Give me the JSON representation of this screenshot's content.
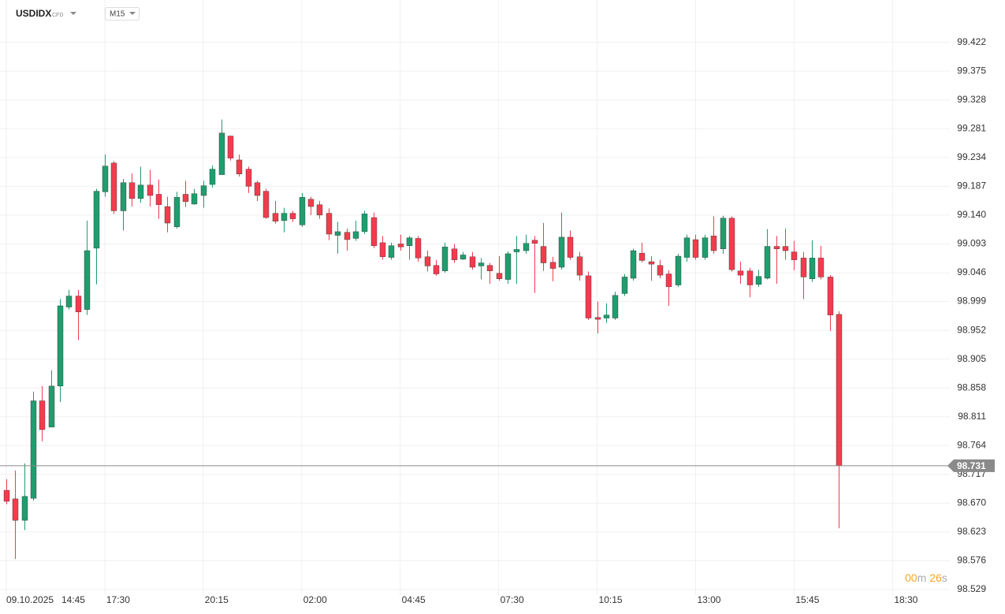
{
  "header": {
    "symbol": "USDIDX",
    "instrument_type": "CFD",
    "timeframe": "M15"
  },
  "timer": {
    "minutes": "00",
    "minutes_unit": "m",
    "seconds": "26",
    "seconds_unit": "s"
  },
  "chart_data": {
    "type": "candlestick",
    "start_date": "09.10.2025",
    "up_color": "#1f9d6e",
    "down_color": "#f23c4e",
    "grid": true,
    "current_price": 98.731,
    "current_price_color": "#8a8a8a",
    "xlim": [
      -0.7,
      105.4
    ],
    "xticks": [
      {
        "value": 0,
        "label": "14:45"
      },
      {
        "value": 11,
        "label": "17:30"
      },
      {
        "value": 22,
        "label": "20:15"
      },
      {
        "value": 33,
        "label": "02:00"
      },
      {
        "value": 44,
        "label": "04:45"
      },
      {
        "value": 55,
        "label": "07:30"
      },
      {
        "value": 66,
        "label": "10:15"
      },
      {
        "value": 77,
        "label": "13:00"
      },
      {
        "value": 88,
        "label": "15:45"
      },
      {
        "value": 99,
        "label": "18:30"
      }
    ],
    "ylim": [
      98.52,
      99.491
    ],
    "yticks": [
      99.422,
      99.375,
      99.328,
      99.281,
      99.234,
      99.187,
      {
        "value": 99.14,
        "label": "99.140"
      },
      99.093,
      99.046,
      98.999,
      98.952,
      98.905,
      98.858,
      98.811,
      98.764,
      98.717,
      {
        "value": 98.67,
        "label": "98.670"
      },
      98.623,
      98.576,
      98.529
    ],
    "open": [
      98.691,
      98.677,
      98.642,
      98.678,
      98.837,
      98.794,
      98.861,
      98.99,
      99.008,
      98.986,
      99.086,
      99.178,
      99.225,
      99.147,
      99.193,
      99.167,
      99.189,
      99.174,
      99.154,
      99.121,
      99.174,
      99.158,
      99.172,
      99.19,
      99.206,
      99.269,
      99.23,
      99.215,
      99.193,
      99.179,
      99.143,
      99.131,
      99.143,
      99.124,
      99.166,
      99.157,
      99.143,
      99.107,
      99.112,
      99.102,
      99.113,
      99.136,
      99.095,
      99.071,
      99.093,
      99.09,
      99.102,
      99.072,
      99.058,
      99.049,
      99.085,
      99.068,
      99.072,
      99.057,
      99.058,
      99.045,
      99.035,
      99.08,
      99.082,
      99.099,
      99.089,
      99.063,
      99.055,
      99.104,
      99.072,
      99.041,
      98.973,
      98.972,
      98.972,
      99.012,
      99.037,
      99.078,
      99.064,
      99.058,
      99.044,
      99.026,
      99.071,
      99.1,
      99.071,
      99.106,
      99.085,
      99.135,
      99.049,
      99.049,
      99.027,
      99.037,
      99.089,
      99.089,
      99.08,
      99.07,
      99.036,
      99.07,
      99.039,
      98.978
    ],
    "high": [
      98.709,
      98.723,
      98.735,
      98.852,
      98.861,
      98.887,
      99.003,
      99.018,
      99.018,
      99.131,
      99.183,
      99.239,
      99.228,
      99.199,
      99.208,
      99.219,
      99.214,
      99.198,
      99.17,
      99.178,
      99.196,
      99.183,
      99.196,
      99.221,
      99.296,
      99.27,
      99.239,
      99.219,
      99.196,
      99.183,
      99.163,
      99.152,
      99.147,
      99.176,
      99.17,
      99.163,
      99.151,
      99.129,
      99.118,
      99.131,
      99.147,
      99.144,
      99.106,
      99.095,
      99.108,
      99.106,
      99.106,
      99.082,
      99.067,
      99.095,
      99.093,
      99.08,
      99.08,
      99.07,
      99.062,
      99.073,
      99.081,
      99.106,
      99.108,
      99.106,
      99.127,
      99.072,
      99.144,
      99.115,
      99.08,
      99.048,
      98.999,
      98.996,
      99.015,
      99.044,
      99.085,
      99.095,
      99.073,
      99.067,
      99.05,
      99.077,
      99.108,
      99.108,
      99.108,
      99.138,
      99.139,
      99.138,
      99.064,
      99.054,
      99.051,
      99.117,
      99.106,
      99.118,
      99.098,
      99.08,
      99.099,
      99.09,
      99.042,
      98.983
    ],
    "low": [
      98.668,
      98.579,
      98.626,
      98.674,
      98.771,
      98.794,
      98.835,
      98.986,
      98.936,
      98.977,
      99.027,
      99.17,
      99.142,
      99.115,
      99.154,
      99.16,
      99.154,
      99.134,
      99.112,
      99.118,
      99.153,
      99.157,
      99.152,
      99.185,
      99.206,
      99.229,
      99.203,
      99.176,
      99.163,
      99.134,
      99.126,
      99.112,
      99.129,
      99.121,
      99.14,
      99.134,
      99.099,
      99.077,
      99.082,
      99.098,
      99.109,
      99.086,
      99.067,
      99.067,
      99.082,
      99.067,
      99.064,
      99.048,
      99.041,
      99.046,
      99.062,
      99.067,
      99.051,
      99.035,
      99.028,
      99.033,
      99.028,
      99.028,
      99.077,
      99.013,
      99.049,
      99.032,
      99.051,
      99.067,
      99.033,
      98.969,
      98.947,
      98.964,
      98.969,
      99.008,
      99.033,
      99.063,
      99.033,
      99.037,
      98.992,
      99.023,
      99.064,
      99.067,
      99.067,
      99.077,
      99.077,
      99.048,
      99.028,
      99.006,
      99.023,
      99.035,
      99.028,
      99.067,
      99.05,
      99.003,
      99.031,
      99.035,
      98.951,
      98.629
    ],
    "close": [
      98.673,
      98.642,
      98.681,
      98.837,
      98.79,
      98.861,
      98.992,
      99.008,
      98.982,
      99.082,
      99.179,
      99.22,
      99.147,
      99.193,
      99.167,
      99.189,
      99.172,
      99.157,
      99.127,
      99.169,
      99.162,
      99.175,
      99.188,
      99.215,
      99.274,
      99.233,
      99.207,
      99.187,
      99.172,
      99.136,
      99.13,
      99.143,
      99.134,
      99.169,
      99.154,
      99.14,
      99.109,
      99.113,
      99.1,
      99.113,
      99.142,
      99.09,
      99.072,
      99.09,
      99.088,
      99.103,
      99.07,
      99.057,
      99.044,
      99.088,
      99.067,
      99.075,
      99.055,
      99.062,
      99.049,
      99.036,
      99.077,
      99.084,
      99.094,
      99.094,
      99.062,
      99.053,
      99.104,
      99.071,
      99.042,
      98.972,
      98.97,
      98.977,
      99.009,
      99.039,
      99.082,
      99.066,
      99.06,
      99.042,
      99.023,
      99.073,
      99.103,
      99.071,
      99.103,
      99.082,
      99.135,
      99.051,
      99.042,
      99.026,
      99.04,
      99.089,
      99.085,
      99.082,
      99.067,
      99.039,
      99.07,
      99.039,
      98.977,
      98.731
    ]
  }
}
